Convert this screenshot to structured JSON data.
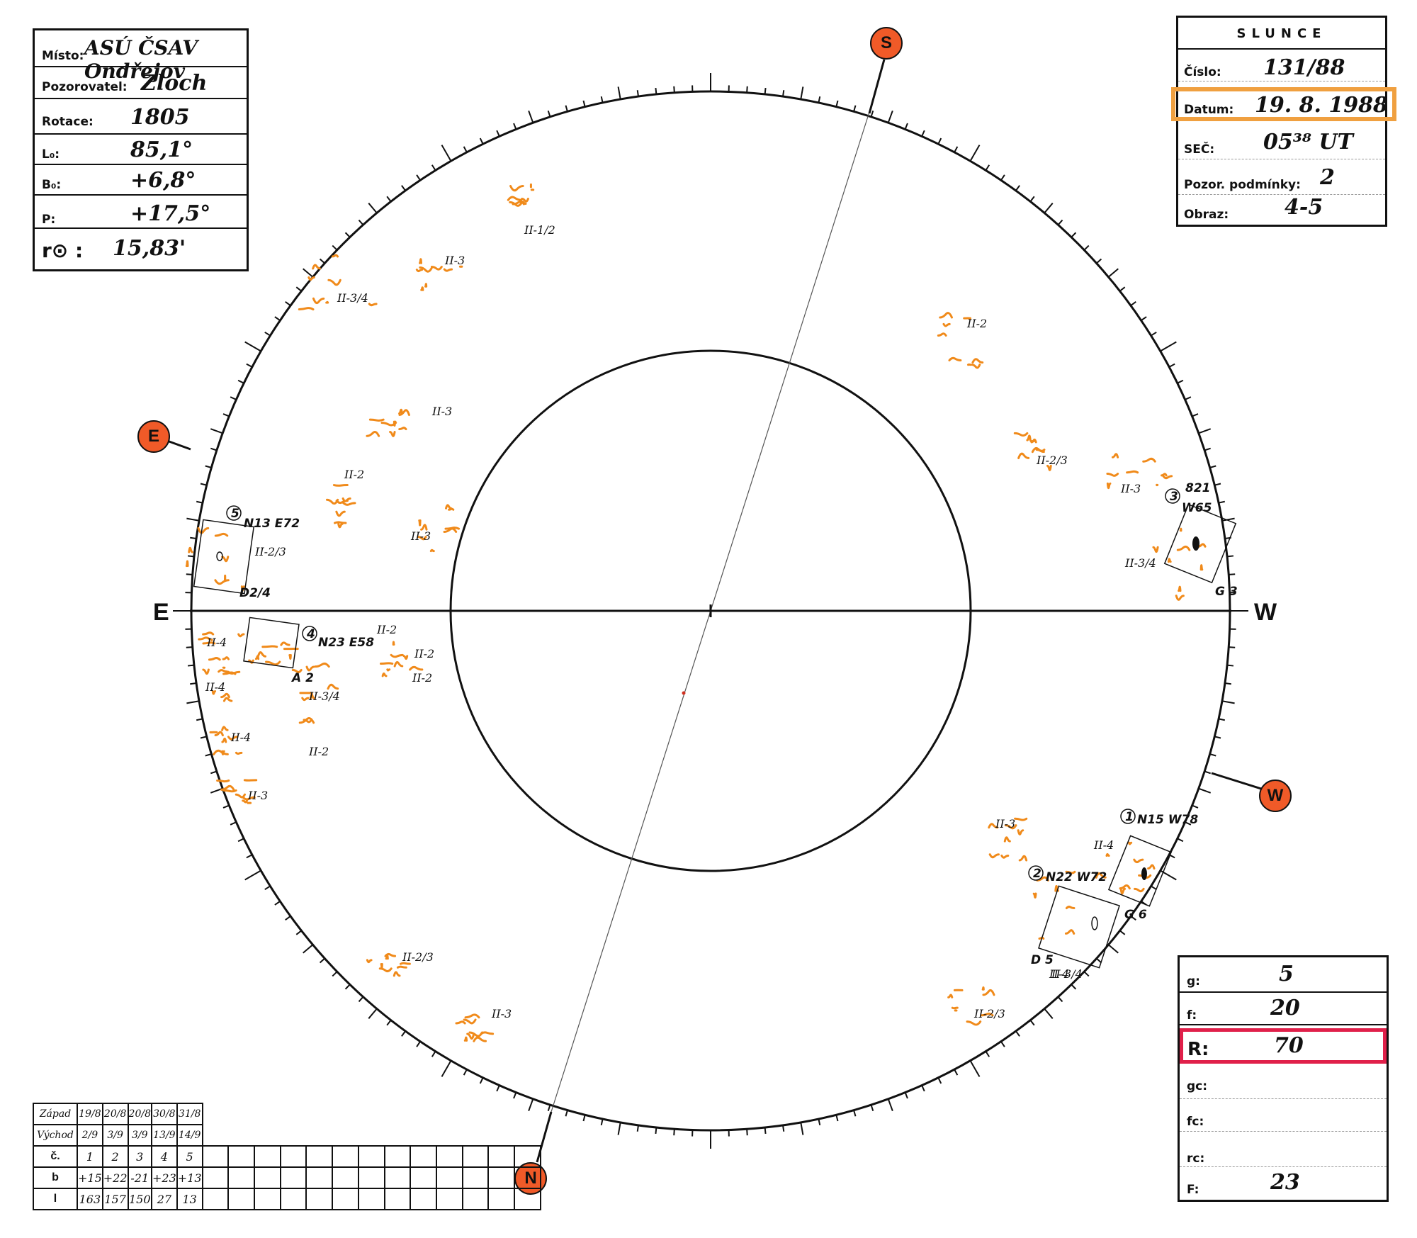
{
  "header_left": {
    "misto_label": "Místo:",
    "misto_value": "ASÚ ČSAV Ondřejov",
    "pozorovatel_label": "Pozorovatel:",
    "pozorovatel_value": "Zloch",
    "rotace_label": "Rotace:",
    "rotace_value": "1805",
    "l0_label": "L₀:",
    "l0_value": "85,1°",
    "b0_label": "B₀:",
    "b0_value": "+6,8°",
    "p_label": "P:",
    "p_value": "+17,5°",
    "r0_label": "r⊙ :",
    "r0_value": "15,83'"
  },
  "header_right": {
    "title": "SLUNCE",
    "cislo_label": "Číslo:",
    "cislo_value": "131/88",
    "datum_label": "Datum:",
    "datum_value": "19. 8. 1988",
    "sec_label": "SEČ:",
    "sec_value": "05³⁸ UT",
    "pozor_label": "Pozor. podmínky:",
    "pozor_value": "2",
    "obraz_label": "Obraz:",
    "obraz_value": "4-5",
    "datum_highlight_color": "#f0a040"
  },
  "compass": {
    "north": "N",
    "south": "S",
    "east": "E",
    "west": "W",
    "marker_color": "#f05a28"
  },
  "groups": [
    {
      "num": "5",
      "coords": "N13 E72"
    },
    {
      "num": "4",
      "coords": "N23 E58"
    },
    {
      "num": "3",
      "coords": "W65"
    },
    {
      "num": "2",
      "coords": "N22 W72"
    },
    {
      "num": "1",
      "coords": "N15 W78"
    }
  ],
  "group_extra_labels": [
    "821",
    "D2/4",
    "A 2",
    "G 3",
    "D 5",
    "G 6"
  ],
  "faculae_labels": [
    "II-1/2",
    "II-3",
    "II-3/4",
    "II-2",
    "II-3",
    "II-2",
    "II-3",
    "II-2/3",
    "II-3",
    "II-2/3",
    "II-3/4",
    "II-4",
    "II-4",
    "II-2",
    "II-2",
    "II-2",
    "II-3/4",
    "II-4",
    "II-4",
    "II-2",
    "II-3",
    "II-3",
    "II-4",
    "II-3/4",
    "II-2/3",
    "II-2/3",
    "II-3"
  ],
  "bottom_table": {
    "row_labels": [
      "Západ",
      "Východ",
      "č.",
      "b",
      "l"
    ],
    "zapad": [
      "19/8",
      "20/8",
      "20/8",
      "30/8",
      "31/8"
    ],
    "vychod": [
      "2/9",
      "3/9",
      "3/9",
      "13/9",
      "14/9"
    ],
    "c": [
      "1",
      "2",
      "3",
      "4",
      "5"
    ],
    "b": [
      "+15",
      "+22",
      "-21",
      "+23",
      "+13"
    ],
    "l": [
      "163",
      "157",
      "150",
      "27",
      "13"
    ]
  },
  "bottom_right": {
    "g_label": "g:",
    "g_value": "5",
    "f_label": "f:",
    "f_value": "20",
    "r_label": "R:",
    "r_value": "70",
    "gc_label": "gc:",
    "gc_value": "",
    "fc_label": "fc:",
    "fc_value": "",
    "rc_label": "rc:",
    "rc_value": "",
    "F_label": "F:",
    "F_value": "23",
    "r_highlight_color": "#e0204a"
  },
  "facula_color": "#f08a1a"
}
